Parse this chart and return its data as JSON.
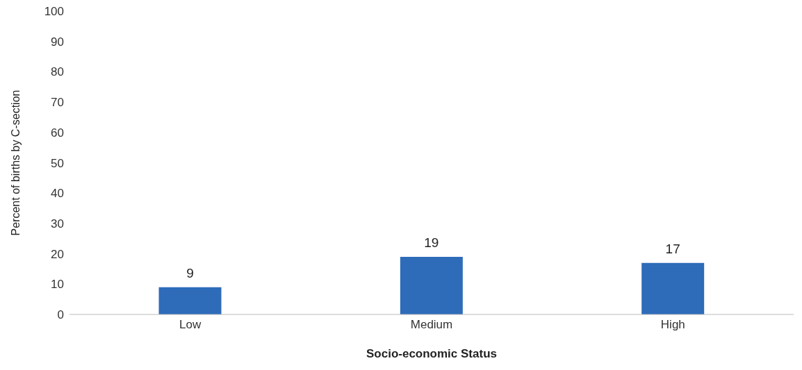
{
  "chart_data": {
    "type": "bar",
    "categories": [
      "Low",
      "Medium",
      "High"
    ],
    "values": [
      9,
      19,
      17
    ],
    "color": "#2e6cba",
    "xlabel": "Socio-economic Status",
    "ylabel": "Percent of births by C-section",
    "ylim": [
      0,
      100
    ],
    "yticks": [
      0,
      10,
      20,
      30,
      40,
      50,
      60,
      70,
      80,
      90,
      100
    ],
    "data_labels": true
  }
}
